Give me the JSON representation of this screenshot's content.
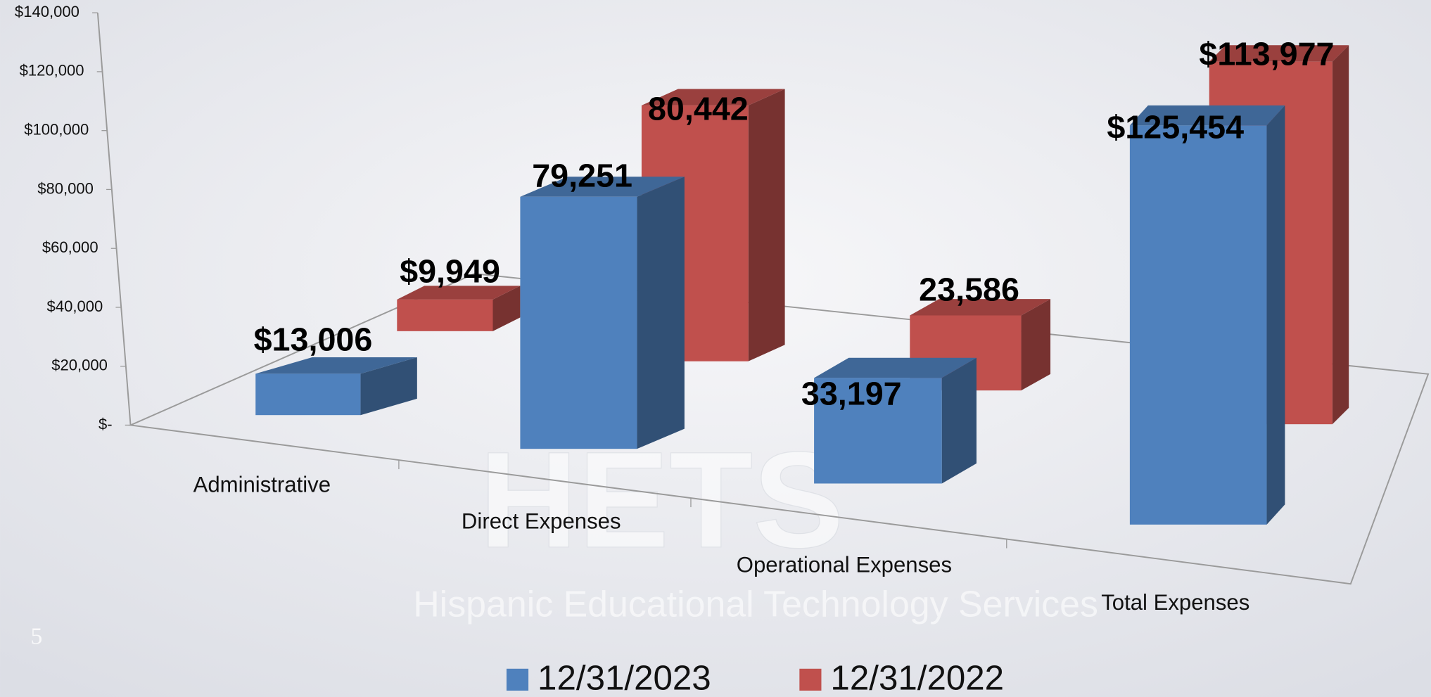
{
  "chart_data": {
    "type": "bar3d",
    "categories": [
      "Administrative",
      "Direct Expenses",
      "Operational Expenses",
      "Total Expenses"
    ],
    "series": [
      {
        "name": "12/31/2023",
        "color": "#4f81bd",
        "values": [
          13006,
          79251,
          33197,
          125454
        ],
        "value_labels": [
          "$13,006",
          "79,251",
          "33,197",
          "$125,454"
        ]
      },
      {
        "name": "12/31/2022",
        "color": "#c0504d",
        "values": [
          9949,
          80442,
          23586,
          113977
        ],
        "value_labels": [
          "$9,949",
          "80,442",
          "23,586",
          "$113,977"
        ]
      }
    ],
    "ylim": [
      0,
      140000
    ],
    "yticks": [
      {
        "value": 0,
        "label": "$-"
      },
      {
        "value": 20000,
        "label": "$20,000"
      },
      {
        "value": 40000,
        "label": "$40,000"
      },
      {
        "value": 60000,
        "label": "$60,000"
      },
      {
        "value": 80000,
        "label": "$80,000"
      },
      {
        "value": 100000,
        "label": "$100,000"
      },
      {
        "value": 120000,
        "label": "$120,000"
      },
      {
        "value": 140000,
        "label": "$140,000"
      }
    ],
    "legend": "bottom"
  },
  "watermark": {
    "logo": "HETS",
    "name": "Hispanic Educational Technology Services",
    "page": "5"
  }
}
